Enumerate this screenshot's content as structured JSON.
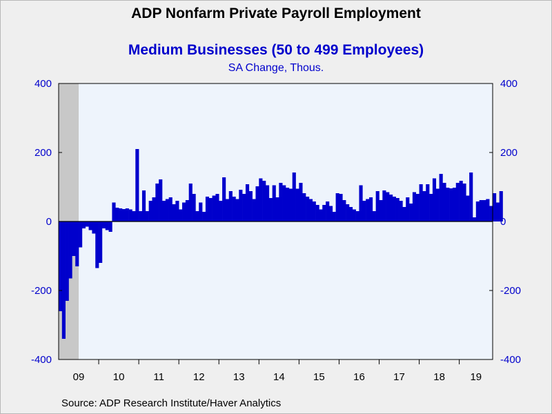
{
  "header": {
    "title": "ADP Nonfarm Private Payroll Employment",
    "subtitle": "Medium Businesses (50 to 499 Employees)",
    "units": "SA Change, Thous."
  },
  "footer": {
    "source": "Source:  ADP Research Institute/Haver Analytics"
  },
  "colors": {
    "bar": "#0000cc",
    "plot_background": "#eef4fc",
    "recession_shade": "#c8c8c8",
    "axis_text": "#0000cc"
  },
  "chart_data": {
    "type": "bar",
    "start_month": "2009-01",
    "x_tick_labels": [
      "09",
      "10",
      "11",
      "12",
      "13",
      "14",
      "15",
      "16",
      "17",
      "18",
      "19"
    ],
    "ylim": [
      -400,
      400
    ],
    "y_ticks": [
      -400,
      -200,
      0,
      200,
      400
    ],
    "recession_shading": {
      "from": "2009-01",
      "to": "2009-06"
    },
    "grid": false,
    "values": [
      -260,
      -340,
      -230,
      -165,
      -100,
      -130,
      -75,
      -20,
      -15,
      -25,
      -35,
      -135,
      -120,
      -20,
      -25,
      -30,
      55,
      40,
      38,
      36,
      38,
      35,
      30,
      210,
      30,
      90,
      30,
      60,
      70,
      110,
      122,
      60,
      65,
      70,
      50,
      60,
      35,
      55,
      62,
      110,
      80,
      30,
      55,
      28,
      72,
      68,
      75,
      80,
      60,
      128,
      65,
      88,
      72,
      65,
      92,
      80,
      108,
      88,
      65,
      102,
      125,
      118,
      105,
      68,
      105,
      70,
      112,
      105,
      98,
      95,
      142,
      95,
      112,
      82,
      72,
      65,
      58,
      48,
      35,
      48,
      58,
      45,
      28,
      82,
      80,
      62,
      50,
      42,
      35,
      30,
      105,
      60,
      65,
      70,
      30,
      88,
      62,
      90,
      85,
      78,
      72,
      68,
      60,
      42,
      70,
      52,
      85,
      80,
      108,
      88,
      108,
      80,
      125,
      95,
      138,
      112,
      98,
      96,
      98,
      112,
      118,
      110,
      75,
      142,
      12,
      58,
      62,
      62,
      65,
      45,
      82,
      55,
      88
    ]
  }
}
